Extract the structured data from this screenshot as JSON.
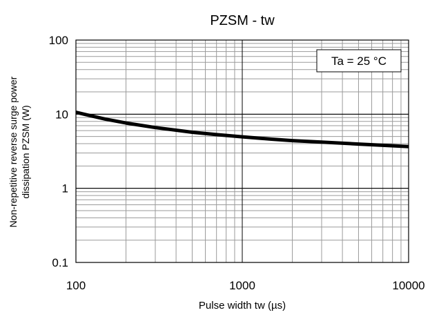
{
  "chart_data": {
    "type": "line",
    "title": "PZSM - tw",
    "xlabel": "Pulse width  tw (µs)",
    "ylabel_lines": [
      "Non-repetitive reverse surge power",
      "dissipation  PZSM (W)"
    ],
    "x_scale": "log",
    "y_scale": "log",
    "xlim": [
      100,
      10000
    ],
    "ylim": [
      0.1,
      100
    ],
    "x_ticks": [
      "100",
      "1000",
      "10000"
    ],
    "y_ticks": [
      "100",
      "10",
      "1",
      "0.1"
    ],
    "grid": true,
    "annotation": "Ta = 25 °C",
    "series": [
      {
        "x": [
          100,
          150,
          200,
          300,
          500,
          700,
          1000,
          1500,
          2000,
          3000,
          5000,
          7000,
          10000
        ],
        "y": [
          10.6,
          8.6,
          7.6,
          6.6,
          5.7,
          5.3,
          4.95,
          4.6,
          4.4,
          4.2,
          3.95,
          3.8,
          3.65
        ]
      }
    ]
  }
}
